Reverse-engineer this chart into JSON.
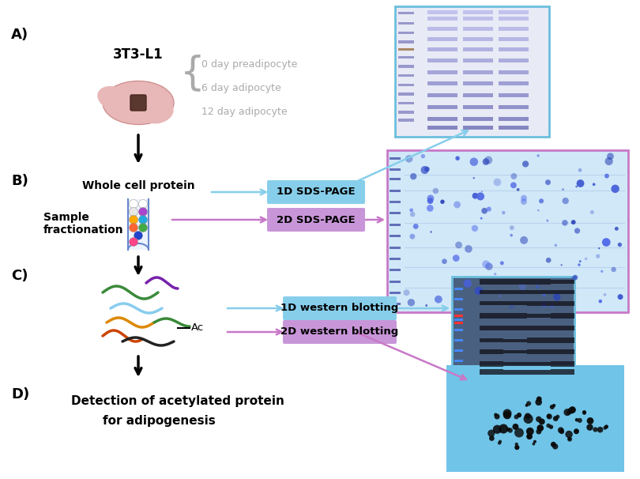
{
  "bg": "#ffffff",
  "section_labels": [
    "A)",
    "B)",
    "C)",
    "D)"
  ],
  "cell_label": "3T3-L1",
  "days_labels": [
    "0 day preadipocyte",
    "6 day adipocyte",
    "12 day adipocyte"
  ],
  "whole_cell_label": "Whole cell protein",
  "sample_frac_label1": "Sample",
  "sample_frac_label2": "fractionation",
  "box1d_b": "1D SDS-PAGE",
  "box2d_b": "2D SDS-PAGE",
  "box1d_c": "1D western blotting",
  "box2d_c": "2D western blotting",
  "detect_line1": "Detection of acetylated protein",
  "detect_line2": "for adipogenesis",
  "ac_label": "Ac",
  "cyan": "#87CEEB",
  "magenta": "#C878C8",
  "cyan_box": "#87CEEB",
  "magenta_box": "#C896D8",
  "gel1_border": "#6BBEDD",
  "gel2_border": "#C878C8",
  "wb1_border": "#6BBEDD",
  "gel1_bg": "#E8EAF5",
  "gel2_bg": "#D0E8F8",
  "wb1_bg": "#4A6080",
  "wb2_bg": "#70C4E8",
  "squiggle_colors": [
    "#3A8A3A",
    "#CC7700",
    "#8833AA",
    "#CC4400",
    "#333333"
  ],
  "squiggle_light_blue": "#88CCEE"
}
